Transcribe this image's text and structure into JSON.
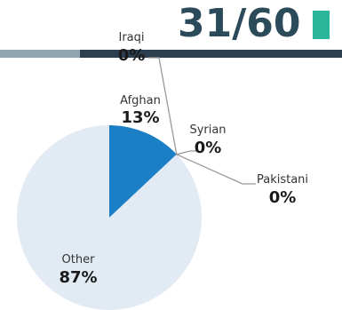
{
  "header": {
    "page_indicator": "31/60"
  },
  "colors": {
    "highlight": "#1a7fc4",
    "other": "#e2ebf4",
    "accent_square": "#2ab69a",
    "title": "#2b4a5a"
  },
  "chart_data": {
    "type": "pie",
    "slices": [
      {
        "label": "Iraqi",
        "value": 0,
        "display": "0%"
      },
      {
        "label": "Afghan",
        "value": 13,
        "display": "13%"
      },
      {
        "label": "Syrian",
        "value": 0,
        "display": "0%"
      },
      {
        "label": "Pakistani",
        "value": 0,
        "display": "0%"
      },
      {
        "label": "Other",
        "value": 87,
        "display": "87%"
      }
    ]
  }
}
